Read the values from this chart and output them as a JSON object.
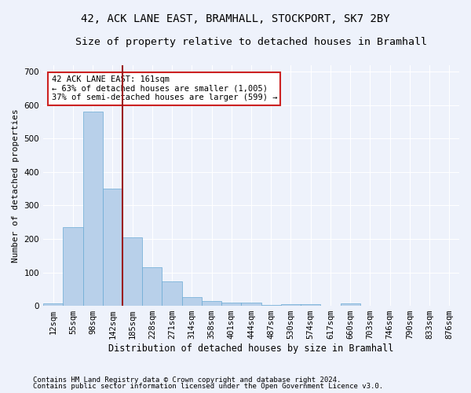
{
  "title": "42, ACK LANE EAST, BRAMHALL, STOCKPORT, SK7 2BY",
  "subtitle": "Size of property relative to detached houses in Bramhall",
  "xlabel": "Distribution of detached houses by size in Bramhall",
  "ylabel": "Number of detached properties",
  "footnote1": "Contains HM Land Registry data © Crown copyright and database right 2024.",
  "footnote2": "Contains public sector information licensed under the Open Government Licence v3.0.",
  "bin_labels": [
    "12sqm",
    "55sqm",
    "98sqm",
    "142sqm",
    "185sqm",
    "228sqm",
    "271sqm",
    "314sqm",
    "358sqm",
    "401sqm",
    "444sqm",
    "487sqm",
    "530sqm",
    "574sqm",
    "617sqm",
    "660sqm",
    "703sqm",
    "746sqm",
    "790sqm",
    "833sqm",
    "876sqm"
  ],
  "bar_values": [
    8,
    234,
    580,
    350,
    205,
    115,
    73,
    25,
    14,
    10,
    10,
    3,
    6,
    6,
    1,
    8,
    0,
    0,
    0,
    0,
    0
  ],
  "bar_color": "#b8d0ea",
  "bar_edge_color": "#6aaad4",
  "vline_x": 3.5,
  "vline_color": "#9b1c1c",
  "annotation_text": "42 ACK LANE EAST: 161sqm\n← 63% of detached houses are smaller (1,005)\n37% of semi-detached houses are larger (599) →",
  "annotation_box_facecolor": "#ffffff",
  "annotation_box_edgecolor": "#cc2222",
  "ylim": [
    0,
    720
  ],
  "yticks": [
    0,
    100,
    200,
    300,
    400,
    500,
    600,
    700
  ],
  "background_color": "#eef2fb",
  "grid_color": "#ffffff",
  "title_fontsize": 10,
  "subtitle_fontsize": 9.5,
  "axis_label_fontsize": 8.5,
  "ylabel_fontsize": 8,
  "tick_fontsize": 7.5,
  "annotation_fontsize": 7.5,
  "footnote_fontsize": 6.5
}
